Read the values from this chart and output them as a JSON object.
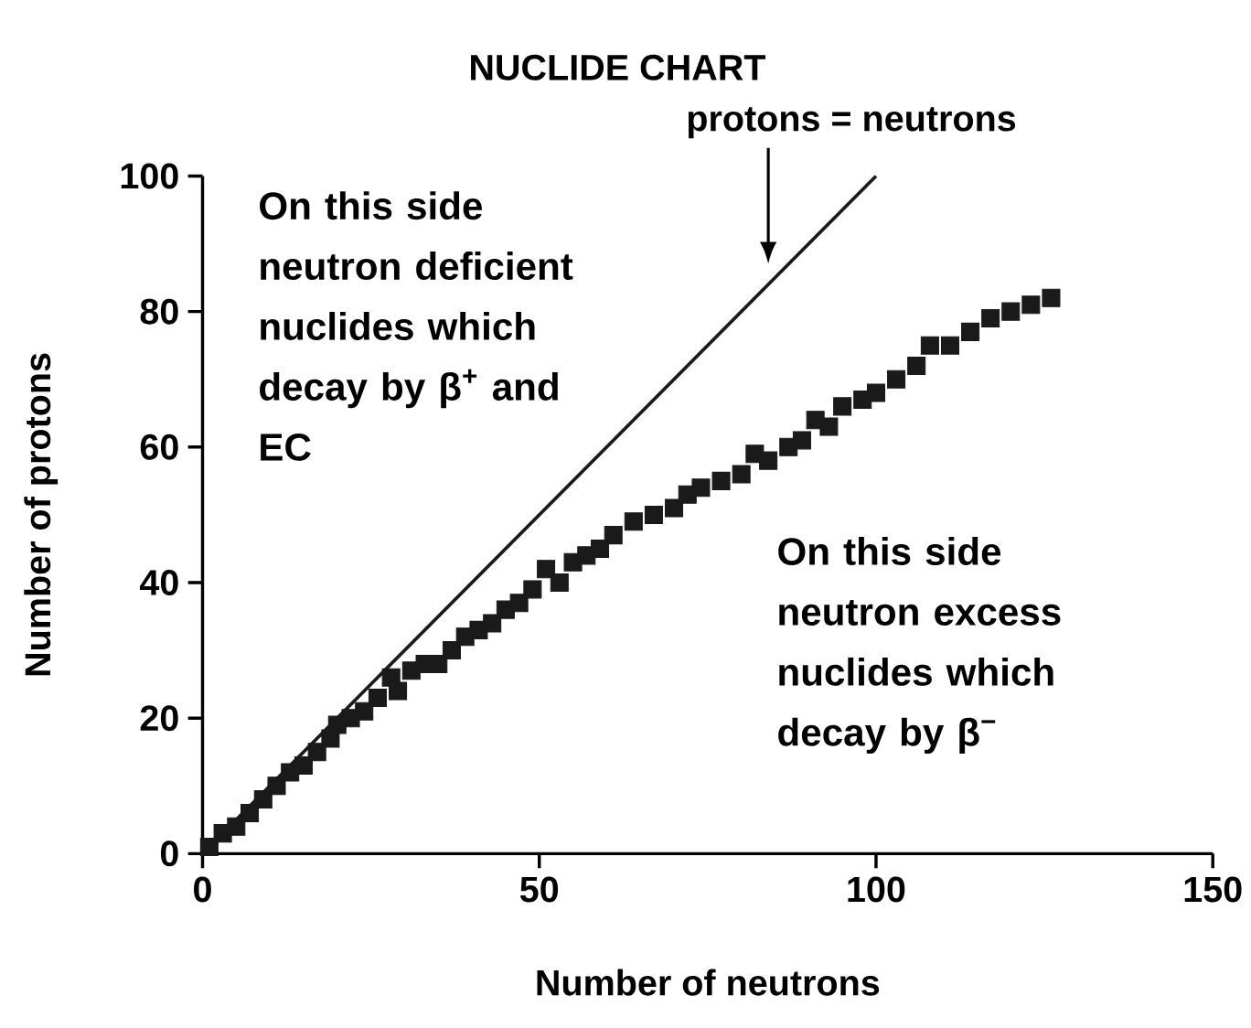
{
  "chart_data": {
    "type": "scatter",
    "title": "NUCLIDE CHART",
    "xlabel": "Number of neutrons",
    "ylabel": "Number of protons",
    "xlim": [
      0,
      150
    ],
    "ylim": [
      0,
      100
    ],
    "xticks": [
      0,
      50,
      100,
      150
    ],
    "yticks": [
      0,
      20,
      40,
      60,
      80,
      100
    ],
    "series": [
      {
        "type": "line",
        "color": "#1a1a1a",
        "marker": "none",
        "line_style": "solid",
        "x": [
          0,
          100
        ],
        "values": [
          0,
          100
        ]
      },
      {
        "color": "#1a1a1a",
        "marker": "square",
        "x": [
          1,
          3,
          5,
          7,
          9,
          11,
          13,
          15,
          17,
          19,
          20,
          22,
          24,
          26,
          28,
          29,
          31,
          33,
          35,
          37,
          39,
          41,
          43,
          45,
          47,
          49,
          51,
          53,
          55,
          57,
          59,
          61,
          64,
          67,
          70,
          72,
          74,
          77,
          80,
          82,
          84,
          87,
          89,
          91,
          93,
          95,
          98,
          100,
          103,
          106,
          108,
          111,
          114,
          117,
          120,
          123,
          126
        ],
        "values": [
          1,
          3,
          4,
          6,
          8,
          10,
          12,
          13,
          15,
          17,
          19,
          20,
          21,
          23,
          26,
          24,
          27,
          28,
          28,
          30,
          32,
          33,
          34,
          36,
          37,
          39,
          42,
          40,
          43,
          44,
          45,
          47,
          49,
          50,
          51,
          53,
          54,
          55,
          56,
          59,
          58,
          60,
          61,
          64,
          63,
          66,
          67,
          68,
          70,
          72,
          75,
          75,
          77,
          79,
          80,
          81,
          82
        ]
      }
    ],
    "annotations": [
      "protons = neutrons",
      "On this side neutron deficient nuclides which decay by β$^{+}$ and EC",
      "On this side neutron excess nuclides which decay by β$^{−}$"
    ]
  }
}
